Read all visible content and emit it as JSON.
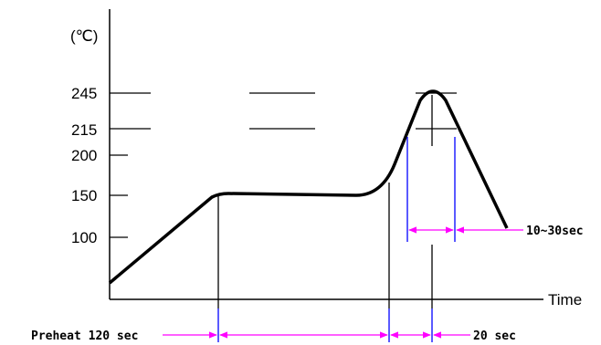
{
  "unit_label": "(℃)",
  "x_axis_label": "Time",
  "y_ticks": [
    "245",
    "215",
    "200",
    "150",
    "100"
  ],
  "annotations": {
    "preheat": "Preheat 120 sec",
    "peak_window": "10~30sec",
    "above_215": "20 sec"
  },
  "colors": {
    "curve": "#000000",
    "marker_lines": "#0000ff",
    "dimension_arrows": "#ff00ff"
  }
}
